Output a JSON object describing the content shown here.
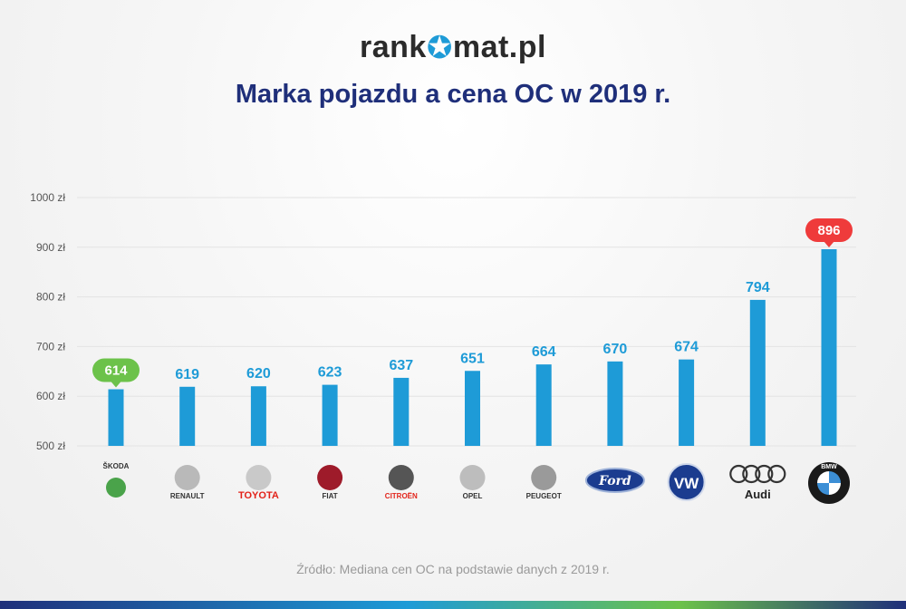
{
  "header": {
    "brand_prefix": "rank",
    "brand_suffix": "mat.pl",
    "title": "Marka pojazdu a cena OC w 2019 r."
  },
  "chart_data": {
    "type": "bar",
    "categories": [
      "ŠKODA",
      "RENAULT",
      "TOYOTA",
      "FIAT",
      "CITROËN",
      "OPEL",
      "PEUGEOT",
      "Ford",
      "VW",
      "Audi",
      "BMW"
    ],
    "values": [
      614,
      619,
      620,
      623,
      637,
      651,
      664,
      670,
      674,
      794,
      896
    ],
    "ylim": [
      500,
      1000
    ],
    "yticks": [
      500,
      600,
      700,
      800,
      900,
      1000
    ],
    "ytick_labels": [
      "500 zł",
      "600 zł",
      "700 zł",
      "800 zł",
      "900 zł",
      "1000 zł"
    ],
    "grid": true,
    "highlight_min_index": 0,
    "highlight_max_index": 10
  },
  "colors": {
    "bar": "#1e9bd7",
    "label": "#1e9bd7",
    "min_badge": "#6cc24a",
    "max_badge": "#ef3b3b",
    "grid": "#e3e3e3",
    "axis_text": "#555555"
  },
  "footer": {
    "source": "Źródło: Mediana cen OC na podstawie danych z 2019 r."
  }
}
